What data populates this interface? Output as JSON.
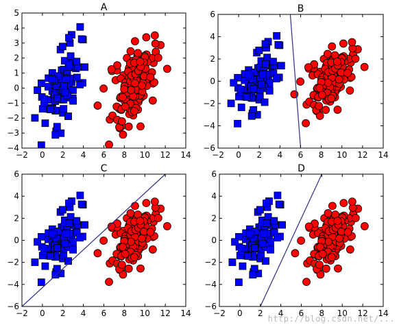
{
  "watermark": "http://blog.csdn.net/...",
  "colors": {
    "blue_fill": "#0000ff",
    "red_fill": "#ff0000",
    "line": "#2b2b8a",
    "frame": "#000000"
  },
  "chart_data": [
    {
      "type": "scatter",
      "title": "A",
      "xlim": [
        -2,
        14
      ],
      "ylim": [
        -4,
        5
      ],
      "xticks": [
        -2,
        0,
        2,
        4,
        6,
        8,
        10,
        12,
        14
      ],
      "yticks": [
        -4,
        -3,
        -2,
        -1,
        0,
        1,
        2,
        3,
        4,
        5
      ],
      "grid": false,
      "series": [
        {
          "marker": "square",
          "color": "#0000ff",
          "center": [
            2.0,
            0.2
          ],
          "spread": [
            1.0,
            1.5
          ],
          "corr": 0.55,
          "count": 100
        },
        {
          "marker": "circle",
          "color": "#ff0000",
          "center": [
            9.0,
            0.3
          ],
          "spread": [
            1.1,
            1.5
          ],
          "corr": 0.6,
          "count": 150
        }
      ],
      "line": null
    },
    {
      "type": "scatter",
      "title": "B",
      "xlim": [
        -2,
        14
      ],
      "ylim": [
        -6,
        6
      ],
      "xticks": [
        -2,
        0,
        2,
        4,
        6,
        8,
        10,
        12,
        14
      ],
      "yticks": [
        -6,
        -4,
        -2,
        0,
        2,
        4,
        6
      ],
      "grid": false,
      "series": [
        {
          "marker": "square",
          "color": "#0000ff",
          "center": [
            2.0,
            0.2
          ],
          "spread": [
            1.0,
            1.5
          ],
          "corr": 0.55,
          "count": 100
        },
        {
          "marker": "circle",
          "color": "#ff0000",
          "center": [
            9.0,
            0.3
          ],
          "spread": [
            1.1,
            1.5
          ],
          "corr": 0.6,
          "count": 150
        }
      ],
      "line": {
        "x": [
          5.0,
          6.0
        ],
        "y": [
          6.0,
          -6.0
        ]
      }
    },
    {
      "type": "scatter",
      "title": "C",
      "xlim": [
        -2,
        14
      ],
      "ylim": [
        -6,
        6
      ],
      "xticks": [
        -2,
        0,
        2,
        4,
        6,
        8,
        10,
        12,
        14
      ],
      "yticks": [
        -6,
        -4,
        -2,
        0,
        2,
        4,
        6
      ],
      "grid": false,
      "series": [
        {
          "marker": "square",
          "color": "#0000ff",
          "center": [
            2.0,
            0.2
          ],
          "spread": [
            1.0,
            1.5
          ],
          "corr": 0.55,
          "count": 100
        },
        {
          "marker": "circle",
          "color": "#ff0000",
          "center": [
            9.0,
            0.3
          ],
          "spread": [
            1.1,
            1.5
          ],
          "corr": 0.6,
          "count": 150
        }
      ],
      "line": {
        "x": [
          -2.0,
          12.0
        ],
        "y": [
          -6.0,
          6.0
        ]
      }
    },
    {
      "type": "scatter",
      "title": "D",
      "xlim": [
        -2,
        14
      ],
      "ylim": [
        -6,
        6
      ],
      "xticks": [
        -2,
        0,
        2,
        4,
        6,
        8,
        10,
        12,
        14
      ],
      "yticks": [
        -6,
        -4,
        -2,
        0,
        2,
        4,
        6
      ],
      "grid": false,
      "series": [
        {
          "marker": "square",
          "color": "#0000ff",
          "center": [
            2.0,
            0.2
          ],
          "spread": [
            1.0,
            1.5
          ],
          "corr": 0.55,
          "count": 100
        },
        {
          "marker": "circle",
          "color": "#ff0000",
          "center": [
            9.0,
            0.3
          ],
          "spread": [
            1.1,
            1.5
          ],
          "corr": 0.6,
          "count": 150
        }
      ],
      "line": {
        "x": [
          2.0,
          8.0
        ],
        "y": [
          -6.0,
          6.0
        ]
      }
    }
  ]
}
